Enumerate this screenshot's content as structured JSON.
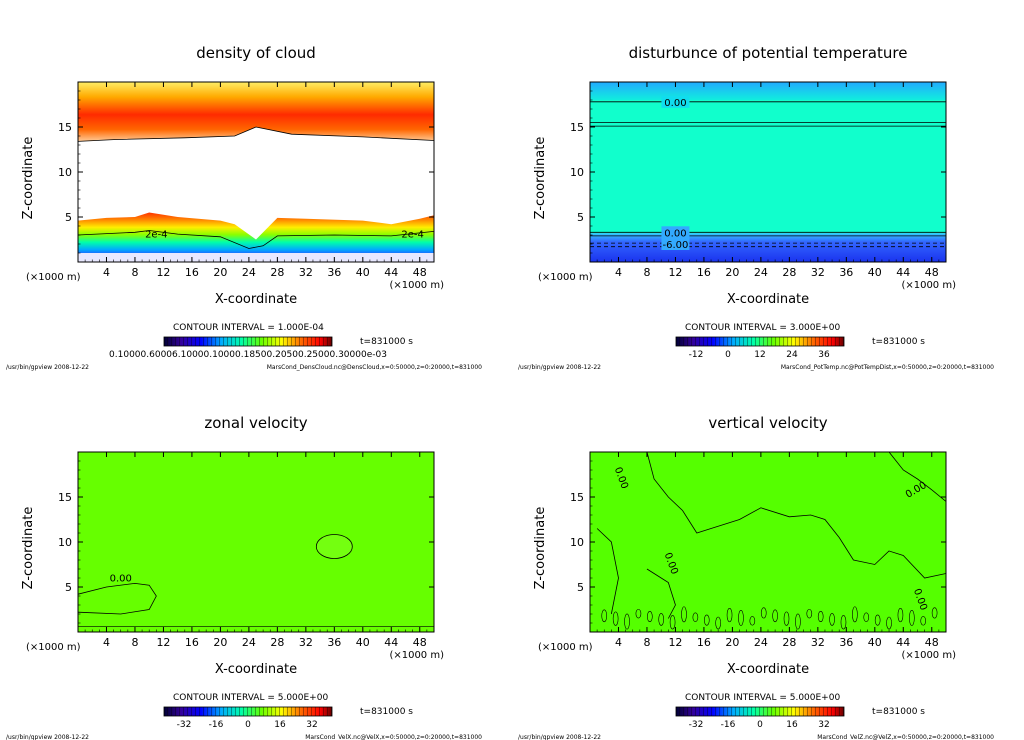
{
  "chart_data": [
    {
      "type": "contour",
      "title": "density of cloud",
      "xlabel": "X-coordinate",
      "ylabel": "Z-coordinate",
      "x_unit": "(×1000 m)",
      "x_unit_right": "(×1000 m)",
      "xlim": [
        0,
        50
      ],
      "ylim": [
        0,
        20
      ],
      "xticks": [
        "4",
        "8",
        "12",
        "16",
        "20",
        "24",
        "28",
        "32",
        "36",
        "40",
        "44",
        "48"
      ],
      "yticks": [
        "5",
        "10",
        "15"
      ],
      "contour_interval": "CONTOUR INTERVAL = 1.000E-04",
      "time_label": "t=831000 s",
      "colorbar_labels": "0.10000.60006.10000.10000.18500.20500.25000.30000e-03",
      "contour_labels": [
        "2e-4",
        "2e-4"
      ],
      "footer_left": "/usr/bin/gpview   2008-12-22",
      "footer_right": "MarsCond_DensCloud.nc@DensCloud,x=0:50000,z=0:20000,t=831000",
      "palette": [
        "#ffff66",
        "#ff4400",
        "#ff2200",
        "#ff8800",
        "#ffdd00",
        "#66ff00",
        "#00ffcc",
        "#0066ff",
        "#6600cc"
      ]
    },
    {
      "type": "contour",
      "title": "disturbunce of potential temperature",
      "xlabel": "X-coordinate",
      "ylabel": "Z-coordinate",
      "x_unit": "(×1000 m)",
      "x_unit_right": "(×1000 m)",
      "xlim": [
        0,
        50
      ],
      "ylim": [
        0,
        20
      ],
      "xticks": [
        "4",
        "8",
        "12",
        "16",
        "20",
        "24",
        "28",
        "32",
        "36",
        "40",
        "44",
        "48"
      ],
      "yticks": [
        "5",
        "10",
        "15"
      ],
      "contour_interval": "CONTOUR INTERVAL = 3.000E+00",
      "time_label": "t=831000 s",
      "colorbar_labels": [
        "-12",
        "0",
        "12",
        "24",
        "36"
      ],
      "contour_labels": [
        "0.00",
        "0.00",
        "-6.00"
      ],
      "footer_left": "/usr/bin/gpview   2008-12-22",
      "footer_right": "MarsCond_PotTemp.nc@PotTempDist,x=0:50000,z=0:20000,t=831000",
      "palette": [
        "#00ffcc",
        "#00ffaa",
        "#3366ff",
        "#0033ff"
      ]
    },
    {
      "type": "contour",
      "title": "zonal velocity",
      "xlabel": "X-coordinate",
      "ylabel": "Z-coordinate",
      "x_unit": "(×1000 m)",
      "x_unit_right": "(×1000 m)",
      "xlim": [
        0,
        50
      ],
      "ylim": [
        0,
        20
      ],
      "xticks": [
        "4",
        "8",
        "12",
        "16",
        "20",
        "24",
        "28",
        "32",
        "36",
        "40",
        "44",
        "48"
      ],
      "yticks": [
        "5",
        "10",
        "15"
      ],
      "contour_interval": "CONTOUR INTERVAL = 5.000E+00",
      "time_label": "t=831000 s",
      "colorbar_labels": [
        "-32",
        "-16",
        "0",
        "16",
        "32"
      ],
      "contour_labels": [
        "0.00"
      ],
      "footer_left": "/usr/bin/gpview   2008-12-22",
      "footer_right": "MarsCond_VelX.nc@VelX,x=0:50000,z=0:20000,t=831000",
      "palette": [
        "#66ff00",
        "#88ff22"
      ]
    },
    {
      "type": "contour",
      "title": "vertical velocity",
      "xlabel": "X-coordinate",
      "ylabel": "Z-coordinate",
      "x_unit": "(×1000 m)",
      "x_unit_right": "(×1000 m)",
      "xlim": [
        0,
        50
      ],
      "ylim": [
        0,
        20
      ],
      "xticks": [
        "4",
        "8",
        "12",
        "16",
        "20",
        "24",
        "28",
        "32",
        "36",
        "40",
        "44",
        "48"
      ],
      "yticks": [
        "5",
        "10",
        "15"
      ],
      "contour_interval": "CONTOUR INTERVAL = 5.000E+00",
      "time_label": "t=831000 s",
      "colorbar_labels": [
        "-32",
        "-16",
        "0",
        "16",
        "32"
      ],
      "contour_labels": [
        "0.00",
        "0.00",
        "0.00",
        "0.00"
      ],
      "footer_left": "/usr/bin/gpview   2008-12-22",
      "footer_right": "MarsCond_VelZ.nc@VelZ,x=0:50000,z=0:20000,t=831000",
      "palette": [
        "#55ff00",
        "#77ff11"
      ]
    }
  ]
}
